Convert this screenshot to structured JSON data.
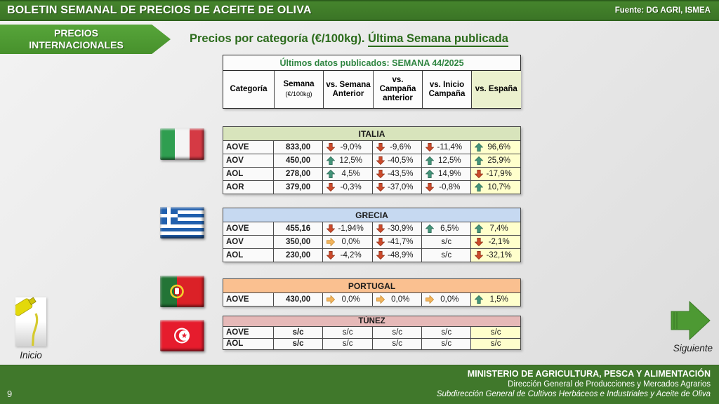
{
  "header": {
    "title": "BOLETIN SEMANAL DE PRECIOS DE ACEITE DE OLIVA",
    "source": "Fuente: DG AGRI, ISMEA"
  },
  "banner": {
    "line1": "PRECIOS",
    "line2": "INTERNACIONALES"
  },
  "section_title": {
    "prefix": "Precios por categoría (€/100kg). ",
    "underlined": "Última Semana publicada"
  },
  "table_header": {
    "title": "Últimos datos publicados: SEMANA 44/2025",
    "columns": [
      {
        "label": "Categoría"
      },
      {
        "label": "Semana",
        "sub": "(€/100kg)"
      },
      {
        "label": "vs. Semana Anterior"
      },
      {
        "label": "vs. Campaña anterior"
      },
      {
        "label": "vs. Inicio Campaña"
      },
      {
        "label": "vs. España",
        "highlight": true
      }
    ]
  },
  "countries": [
    {
      "name": "ITALIA",
      "theme": "#d8e4bc",
      "flag": "italy",
      "rows": [
        {
          "category": "AOVE",
          "price": "833,00",
          "changes": [
            {
              "dir": "down",
              "value": "-9,0%"
            },
            {
              "dir": "down",
              "value": "-9,6%"
            },
            {
              "dir": "down",
              "value": "-11,4%"
            },
            {
              "dir": "up",
              "value": "96,6%"
            }
          ]
        },
        {
          "category": "AOV",
          "price": "450,00",
          "changes": [
            {
              "dir": "up",
              "value": "12,5%"
            },
            {
              "dir": "down",
              "value": "-40,5%"
            },
            {
              "dir": "up",
              "value": "12,5%"
            },
            {
              "dir": "up",
              "value": "25,9%"
            }
          ]
        },
        {
          "category": "AOL",
          "price": "278,00",
          "changes": [
            {
              "dir": "up",
              "value": "4,5%"
            },
            {
              "dir": "down",
              "value": "-43,5%"
            },
            {
              "dir": "up",
              "value": "14,9%"
            },
            {
              "dir": "down",
              "value": "-17,9%"
            }
          ]
        },
        {
          "category": "AOR",
          "price": "379,00",
          "changes": [
            {
              "dir": "down",
              "value": "-0,3%"
            },
            {
              "dir": "down",
              "value": "-37,0%"
            },
            {
              "dir": "down",
              "value": "-0,8%"
            },
            {
              "dir": "up",
              "value": "10,7%"
            }
          ]
        }
      ]
    },
    {
      "name": "GRECIA",
      "theme": "#c6d9f1",
      "flag": "greece",
      "rows": [
        {
          "category": "AOVE",
          "price": "455,16",
          "changes": [
            {
              "dir": "down",
              "value": "-1,94%"
            },
            {
              "dir": "down",
              "value": "-30,9%"
            },
            {
              "dir": "up",
              "value": "6,5%"
            },
            {
              "dir": "up",
              "value": "7,4%"
            }
          ]
        },
        {
          "category": "AOV",
          "price": "350,00",
          "changes": [
            {
              "dir": "right",
              "value": "0,0%"
            },
            {
              "dir": "down",
              "value": "-41,7%"
            },
            {
              "dir": "none",
              "value": "s/c"
            },
            {
              "dir": "down",
              "value": "-2,1%"
            }
          ]
        },
        {
          "category": "AOL",
          "price": "230,00",
          "changes": [
            {
              "dir": "down",
              "value": "-4,2%"
            },
            {
              "dir": "down",
              "value": "-48,9%"
            },
            {
              "dir": "none",
              "value": "s/c"
            },
            {
              "dir": "down",
              "value": "-32,1%"
            }
          ]
        }
      ]
    },
    {
      "name": "PORTUGAL",
      "theme": "#fac090",
      "flag": "portugal",
      "rows": [
        {
          "category": "AOVE",
          "price": "430,00",
          "changes": [
            {
              "dir": "right",
              "value": "0,0%"
            },
            {
              "dir": "right",
              "value": "0,0%"
            },
            {
              "dir": "right",
              "value": "0,0%"
            },
            {
              "dir": "up",
              "value": "1,5%"
            }
          ]
        }
      ]
    },
    {
      "name": "TÚNEZ",
      "theme": "#e6b9b8",
      "flag": "tunisia",
      "compact": true,
      "rows": [
        {
          "category": "AOVE",
          "price": "s/c",
          "changes": [
            {
              "dir": "none",
              "value": "s/c"
            },
            {
              "dir": "none",
              "value": "s/c"
            },
            {
              "dir": "none",
              "value": "s/c"
            },
            {
              "dir": "none",
              "value": "s/c"
            }
          ]
        },
        {
          "category": "AOL",
          "price": "s/c",
          "changes": [
            {
              "dir": "none",
              "value": "s/c"
            },
            {
              "dir": "none",
              "value": "s/c"
            },
            {
              "dir": "none",
              "value": "s/c"
            },
            {
              "dir": "none",
              "value": "s/c"
            }
          ]
        }
      ]
    }
  ],
  "colors": {
    "accent_green_dark": "#3b7526",
    "accent_green_bright": "#4f9c33",
    "title_green": "#2b6b1b",
    "header_note_green": "#2e8540",
    "espana_col": "#ffffcc",
    "espana_header": "#ebf1ce",
    "up": "#44947a",
    "up_edge": "#2f6c58",
    "down": "#cc4a2b",
    "down_edge": "#8f3018",
    "right": "#f2b45c",
    "right_edge": "#c98a2e"
  },
  "footer": {
    "line1": "MINISTERIO DE AGRICULTURA, PESCA Y ALIMENTACIÓN",
    "line2": "Dirección General de Producciones y Mercados Agrarios",
    "line3": "Subdirección General de Cultivos Herbáceos e Industriales y Aceite de Oliva",
    "page": "9"
  },
  "nav": {
    "inicio": "Inicio",
    "siguiente": "Siguiente"
  }
}
